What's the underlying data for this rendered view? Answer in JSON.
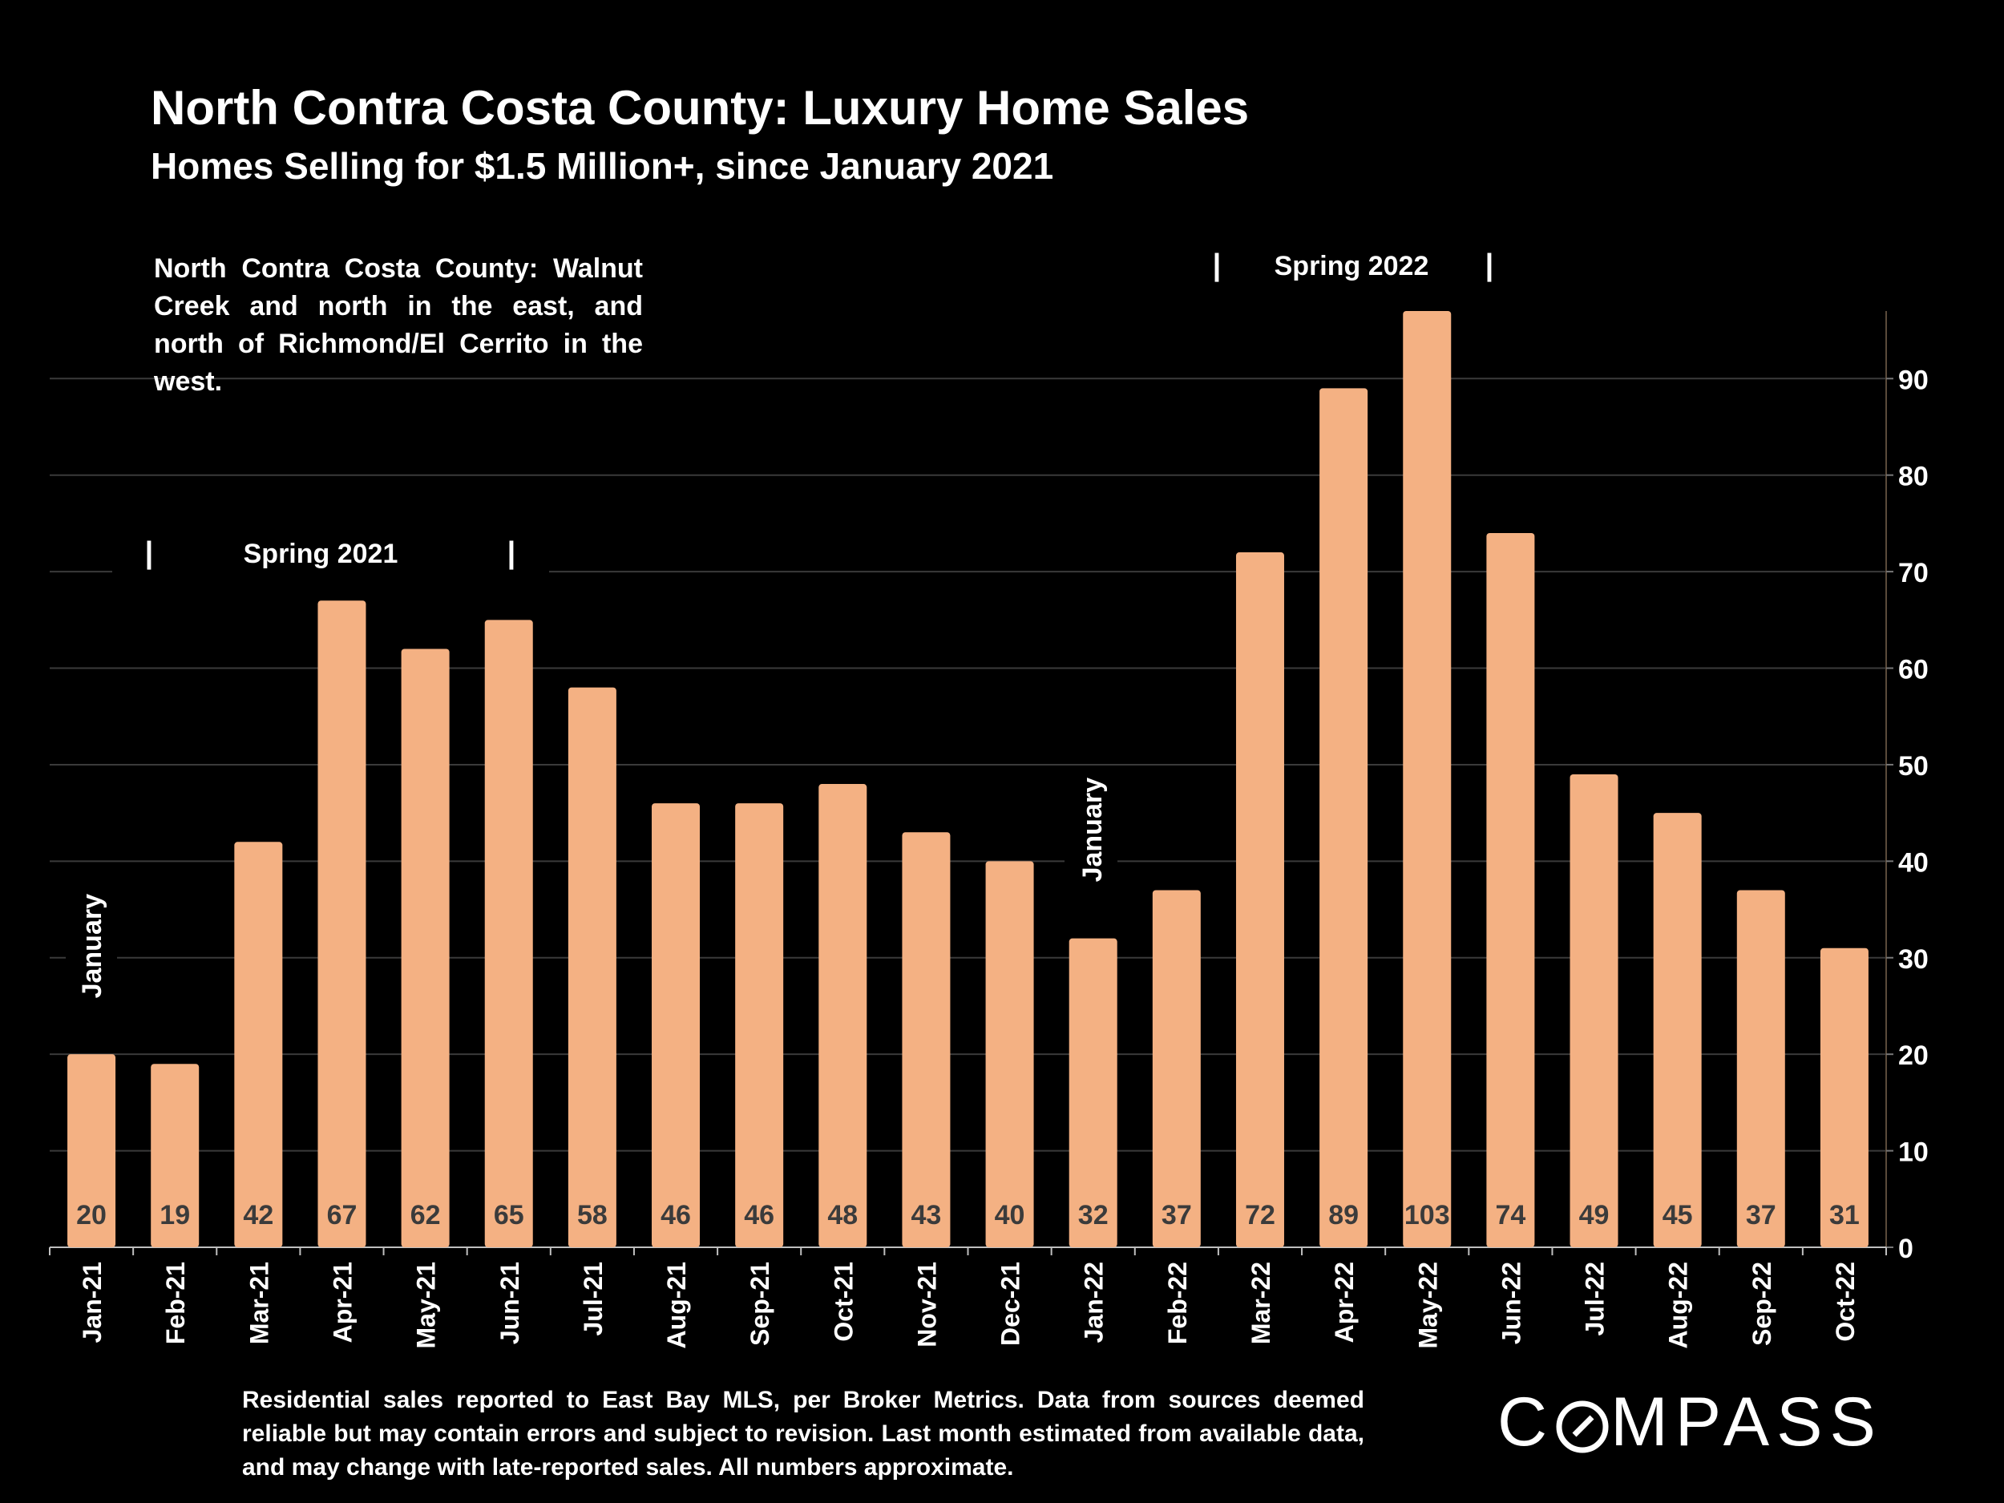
{
  "header": {
    "title": "North Contra Costa County: Luxury Home Sales",
    "subtitle": "Homes Selling for $1.5 Million+, since January 2021"
  },
  "region_note": "North Contra Costa County: Walnut Creek and north in the east, and north of Richmond/El Cerrito in the west.",
  "footnote": "Residential sales reported to East Bay MLS, per Broker Metrics. Data from sources deemed reliable but may contain errors and subject to revision.  Last month estimated from available data, and may change with late-reported sales. All numbers approximate.",
  "logo": {
    "before": "C",
    "after": "MPASS"
  },
  "annotations": {
    "spring_2021": "Spring 2021",
    "spring_2022": "Spring 2022",
    "january_1": "January",
    "january_2": "January",
    "bracket": "|"
  },
  "colors": {
    "bar": "#F4B183",
    "background": "#000000",
    "grid": "#3a3a3a",
    "text": "#ffffff",
    "value_label": "#3b3b3b"
  },
  "chart_data": {
    "type": "bar",
    "title": "North Contra Costa County: Luxury Home Sales",
    "subtitle": "Homes Selling for $1.5 Million+, since January 2021",
    "categories": [
      "Jan-21",
      "Feb-21",
      "Mar-21",
      "Apr-21",
      "May-21",
      "Jun-21",
      "Jul-21",
      "Aug-21",
      "Sep-21",
      "Oct-21",
      "Nov-21",
      "Dec-21",
      "Jan-22",
      "Feb-22",
      "Mar-22",
      "Apr-22",
      "May-22",
      "Jun-22",
      "Jul-22",
      "Aug-22",
      "Sep-22",
      "Oct-22"
    ],
    "values": [
      20,
      19,
      42,
      67,
      62,
      65,
      58,
      46,
      46,
      48,
      43,
      40,
      32,
      37,
      72,
      89,
      103,
      74,
      49,
      45,
      37,
      31
    ],
    "data_labels": [
      "20",
      "19",
      "42",
      "67",
      "62",
      "65",
      "58",
      "46",
      "46",
      "48",
      "43",
      "40",
      "32",
      "37",
      "72",
      "89",
      "103",
      "74",
      "49",
      "45",
      "37",
      "31"
    ],
    "y_axis_side": "right",
    "yticks": [
      0,
      10,
      20,
      30,
      40,
      50,
      60,
      70,
      80,
      90
    ],
    "ylim": [
      0,
      97
    ],
    "grid": true,
    "xlabel": "",
    "ylabel": ""
  }
}
